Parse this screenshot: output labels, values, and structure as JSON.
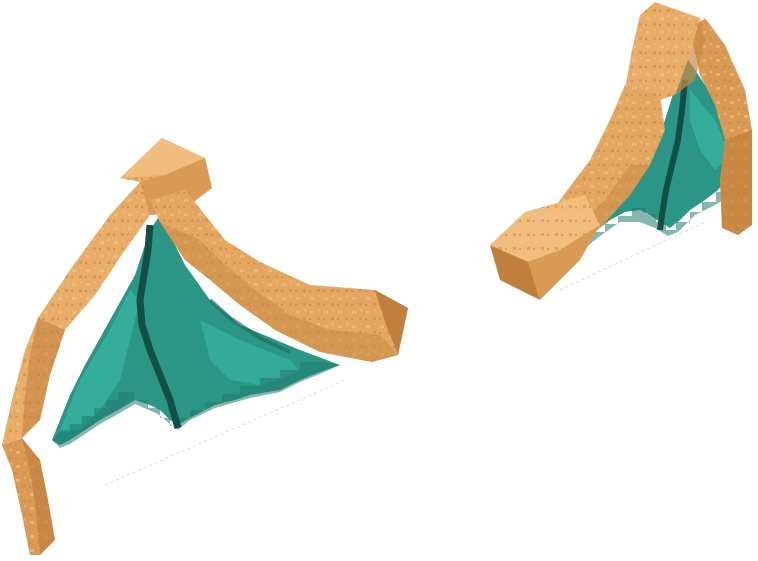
{
  "scene": {
    "subject": "two-voxel-wings",
    "colors": {
      "background": "#ffffff",
      "bone_light": "#e8ad68",
      "bone_mid": "#d99a55",
      "bone_dark": "#c07f3d",
      "bone_shadow": "#a96a2c",
      "bone_speckle": "#f2c48a",
      "membrane": "#2b9686",
      "membrane_light": "#37b3a0",
      "membrane_dark": "#1d6f63",
      "vein": "#124f47"
    },
    "wings": [
      {
        "name": "left-wing"
      },
      {
        "name": "right-wing"
      }
    ]
  }
}
